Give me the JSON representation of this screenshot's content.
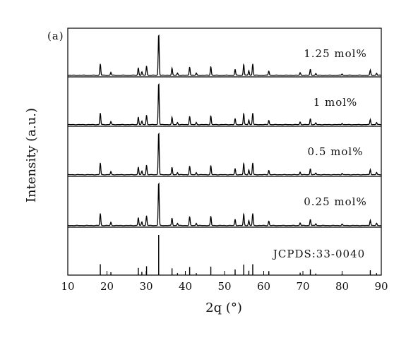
{
  "chart_data": {
    "type": "line",
    "panel_tag": "(a)",
    "xlabel": "2q (°)",
    "ylabel": "Intensity (a.u.)",
    "xlim": [
      10,
      90
    ],
    "xticks": [
      "10",
      "20",
      "30",
      "40",
      "50",
      "60",
      "70",
      "80",
      "90"
    ],
    "grid": false,
    "legend": "none",
    "panels": [
      {
        "label": "1.25 mol%",
        "kind": "pattern"
      },
      {
        "label": "1 mol%",
        "kind": "pattern"
      },
      {
        "label": "0.5 mol%",
        "kind": "pattern"
      },
      {
        "label": "0.25 mol%",
        "kind": "pattern"
      },
      {
        "label": "JCPDS:33-0040",
        "kind": "reference"
      }
    ],
    "peaks": [
      {
        "x": 18.3,
        "rel": 0.27
      },
      {
        "x": 21.0,
        "rel": 0.07
      },
      {
        "x": 28.0,
        "rel": 0.18
      },
      {
        "x": 28.9,
        "rel": 0.08
      },
      {
        "x": 30.1,
        "rel": 0.22
      },
      {
        "x": 33.2,
        "rel": 1.0
      },
      {
        "x": 36.6,
        "rel": 0.17
      },
      {
        "x": 38.0,
        "rel": 0.05
      },
      {
        "x": 41.1,
        "rel": 0.2
      },
      {
        "x": 42.8,
        "rel": 0.05
      },
      {
        "x": 46.5,
        "rel": 0.21
      },
      {
        "x": 52.7,
        "rel": 0.14
      },
      {
        "x": 54.9,
        "rel": 0.26
      },
      {
        "x": 56.2,
        "rel": 0.11
      },
      {
        "x": 57.2,
        "rel": 0.27
      },
      {
        "x": 61.3,
        "rel": 0.1
      },
      {
        "x": 69.3,
        "rel": 0.06
      },
      {
        "x": 71.9,
        "rel": 0.14
      },
      {
        "x": 73.3,
        "rel": 0.04
      },
      {
        "x": 80.0,
        "rel": 0.03
      },
      {
        "x": 87.2,
        "rel": 0.12
      },
      {
        "x": 88.8,
        "rel": 0.05
      }
    ]
  },
  "colors": {
    "line": "#000000",
    "axis": "#000000"
  }
}
